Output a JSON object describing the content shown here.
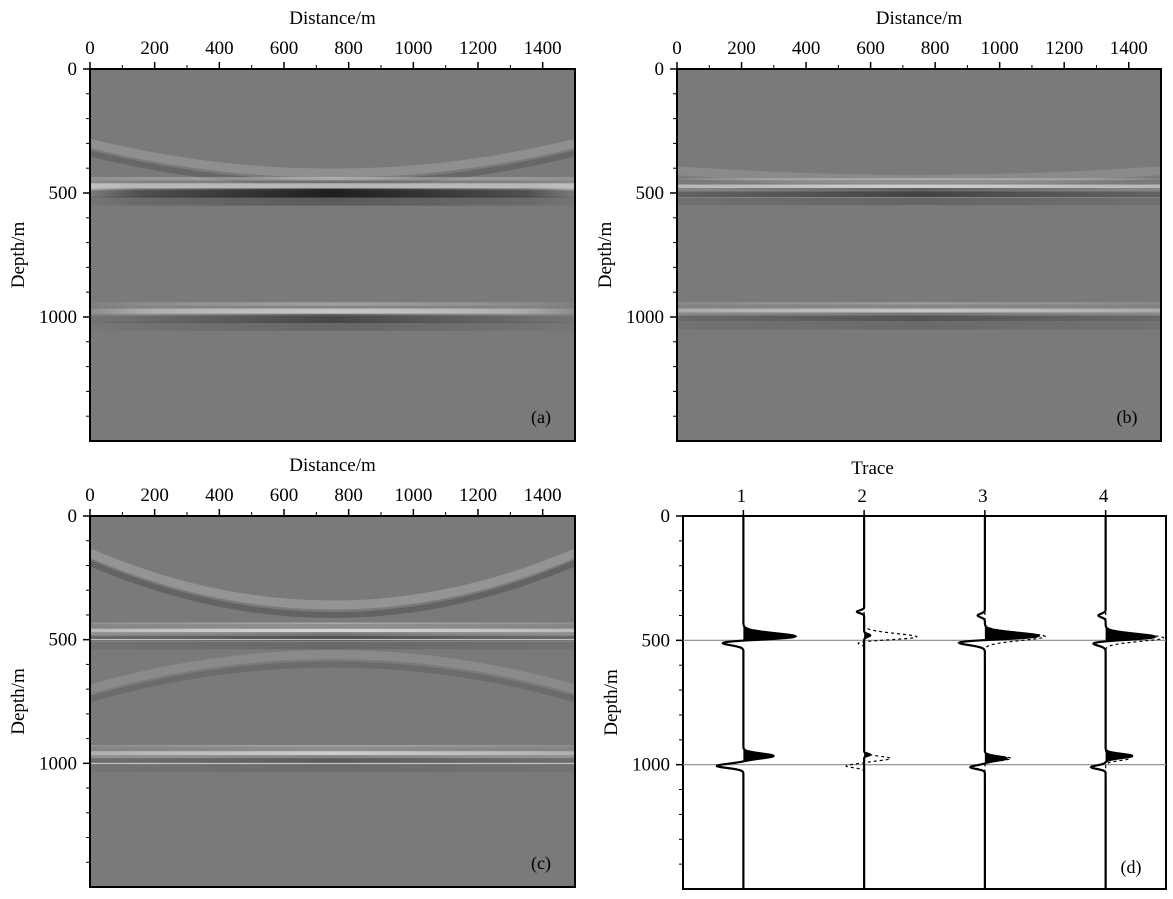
{
  "figure": {
    "tags": [
      "(a)",
      "(b)",
      "(c)",
      "(d)"
    ]
  },
  "colors": {
    "background_gray": "#7a7a7a",
    "bright": "#ffffff",
    "dark": "#141414",
    "trace_line": "#000000",
    "depth_marker": "#cfcfcf"
  },
  "chart_data": [
    {
      "type": "heatmap",
      "panel": "(a)",
      "xlabel": "Distance/m",
      "ylabel": "Depth/m",
      "xlim": [
        0,
        1500
      ],
      "ylim": [
        0,
        1500
      ],
      "y_inverted": true,
      "colormap": "gray",
      "x_ticks": [
        0,
        200,
        400,
        600,
        800,
        1000,
        1200,
        1400
      ],
      "y_ticks": [
        0,
        500,
        1000
      ],
      "x_tick_labels": [
        "0",
        "200",
        "400",
        "600",
        "800",
        "1000",
        "1200",
        "1400"
      ],
      "y_tick_labels": [
        "0",
        "500",
        "1000"
      ],
      "reflectors": [
        {
          "depth": 475,
          "amplitude": 1.0,
          "polarity": "positive",
          "x_range": [
            0,
            1500
          ]
        },
        {
          "depth": 500,
          "amplitude": -0.9,
          "polarity": "negative",
          "x_range": [
            150,
            1350
          ]
        },
        {
          "depth": 980,
          "amplitude": 0.85,
          "polarity": "positive",
          "x_range": [
            200,
            1300
          ]
        },
        {
          "depth": 1005,
          "amplitude": -0.55,
          "polarity": "negative",
          "x_range": [
            250,
            1250
          ]
        }
      ],
      "artifact_arcs": [
        {
          "apex_depth": 420,
          "edge_depth": 300,
          "amplitude": 0.25
        }
      ]
    },
    {
      "type": "heatmap",
      "panel": "(b)",
      "xlabel": "Distance/m",
      "ylabel": "Depth/m",
      "xlim": [
        0,
        1500
      ],
      "ylim": [
        0,
        1500
      ],
      "y_inverted": true,
      "colormap": "gray",
      "x_ticks": [
        0,
        200,
        400,
        600,
        800,
        1000,
        1200,
        1400
      ],
      "y_ticks": [
        0,
        500,
        1000
      ],
      "x_tick_labels": [
        "0",
        "200",
        "400",
        "600",
        "800",
        "1000",
        "1200",
        "1400"
      ],
      "y_tick_labels": [
        "0",
        "500",
        "1000"
      ],
      "reflectors": [
        {
          "depth": 480,
          "amplitude": 1.0,
          "polarity": "positive",
          "x_range": [
            0,
            1500
          ]
        },
        {
          "depth": 498,
          "amplitude": -0.6,
          "polarity": "negative",
          "x_range": [
            0,
            1500
          ]
        },
        {
          "depth": 980,
          "amplitude": 0.75,
          "polarity": "positive",
          "x_range": [
            0,
            1500
          ]
        },
        {
          "depth": 1000,
          "amplitude": -0.45,
          "polarity": "negative",
          "x_range": [
            0,
            1500
          ]
        }
      ],
      "artifact_arcs": [
        {
          "apex_depth": 445,
          "edge_depth": 410,
          "amplitude": 0.2
        }
      ]
    },
    {
      "type": "heatmap",
      "panel": "(c)",
      "xlabel": "Distance/m",
      "ylabel": "Depth/m",
      "xlim": [
        0,
        1500
      ],
      "ylim": [
        0,
        1500
      ],
      "y_inverted": true,
      "colormap": "gray",
      "x_ticks": [
        0,
        200,
        400,
        600,
        800,
        1000,
        1200,
        1400
      ],
      "y_ticks": [
        0,
        500,
        1000
      ],
      "x_tick_labels": [
        "0",
        "200",
        "400",
        "600",
        "800",
        "1000",
        "1200",
        "1400"
      ],
      "y_tick_labels": [
        "0",
        "500",
        "1000"
      ],
      "reflectors": [
        {
          "depth": 470,
          "amplitude": 1.0,
          "polarity": "positive",
          "x_range": [
            0,
            1500
          ]
        },
        {
          "depth": 488,
          "amplitude": -0.5,
          "polarity": "negative",
          "x_range": [
            0,
            1500
          ]
        },
        {
          "depth": 965,
          "amplitude": 0.8,
          "polarity": "positive",
          "x_range": [
            0,
            1500
          ]
        },
        {
          "depth": 985,
          "amplitude": -0.4,
          "polarity": "negative",
          "x_range": [
            0,
            1500
          ]
        }
      ],
      "artifact_arcs": [
        {
          "apex_depth": 360,
          "edge_depth": 150,
          "amplitude": 0.3
        },
        {
          "apex_depth": 560,
          "edge_depth": 700,
          "amplitude": 0.2
        }
      ],
      "marker_lines_depth": [
        500,
        1000
      ]
    },
    {
      "type": "line",
      "panel": "(d)",
      "title": "Trace",
      "ylabel": "Depth/m",
      "xlim": [
        0.5,
        4.5
      ],
      "ylim": [
        0,
        1500
      ],
      "y_inverted": true,
      "x_ticks": [
        1,
        2,
        3,
        4
      ],
      "x_tick_labels": [
        "1",
        "2",
        "3",
        "4"
      ],
      "y_ticks": [
        0,
        500,
        1000
      ],
      "y_tick_labels": [
        "0",
        "500",
        "1000"
      ],
      "marker_lines_depth": [
        500,
        1000
      ],
      "traces": [
        {
          "trace": 1,
          "solid_events": [
            {
              "depth": 490,
              "amp": 0.55,
              "w": 55
            },
            {
              "depth": 505,
              "amp": -0.45,
              "w": 40
            },
            {
              "depth": 965,
              "amp": 0.25,
              "w": 35
            },
            {
              "depth": 1005,
              "amp": -0.22,
              "w": 30
            }
          ],
          "dashed_events": []
        },
        {
          "trace": 2,
          "solid_events": [
            {
              "depth": 385,
              "amp": -0.06,
              "w": 20
            },
            {
              "depth": 480,
              "amp": 0.05,
              "w": 20
            },
            {
              "depth": 960,
              "amp": 0.05,
              "w": 15
            }
          ],
          "dashed_events": [
            {
              "depth": 490,
              "amp": 0.5,
              "w": 55
            },
            {
              "depth": 505,
              "amp": -0.3,
              "w": 35
            },
            {
              "depth": 975,
              "amp": 0.22,
              "w": 30
            },
            {
              "depth": 1005,
              "amp": -0.15,
              "w": 25
            }
          ]
        },
        {
          "trace": 3,
          "solid_events": [
            {
              "depth": 400,
              "amp": -0.06,
              "w": 25
            },
            {
              "depth": 485,
              "amp": 0.5,
              "w": 50
            },
            {
              "depth": 505,
              "amp": -0.35,
              "w": 40
            },
            {
              "depth": 975,
              "amp": 0.18,
              "w": 30
            },
            {
              "depth": 1010,
              "amp": -0.12,
              "w": 25
            }
          ],
          "dashed_events": [
            {
              "depth": 485,
              "amp": 0.5,
              "w": 55
            },
            {
              "depth": 975,
              "amp": 0.22,
              "w": 30
            }
          ]
        },
        {
          "trace": 4,
          "solid_events": [
            {
              "depth": 400,
              "amp": -0.06,
              "w": 25
            },
            {
              "depth": 490,
              "amp": 0.5,
              "w": 50
            },
            {
              "depth": 505,
              "amp": -0.3,
              "w": 40
            },
            {
              "depth": 965,
              "amp": 0.22,
              "w": 30
            },
            {
              "depth": 1010,
              "amp": -0.12,
              "w": 25
            }
          ],
          "dashed_events": [
            {
              "depth": 490,
              "amp": 0.48,
              "w": 50
            },
            {
              "depth": 975,
              "amp": 0.2,
              "w": 30
            }
          ]
        }
      ]
    }
  ]
}
